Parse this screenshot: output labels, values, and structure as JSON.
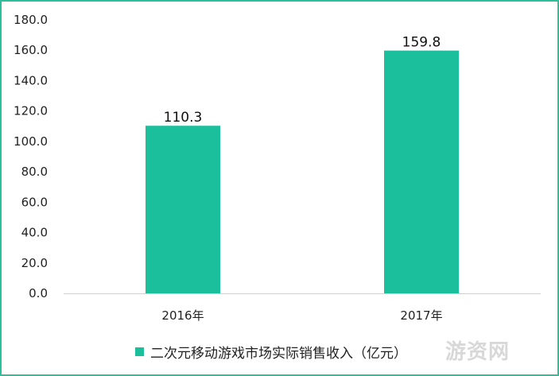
{
  "chart_data": {
    "type": "bar",
    "categories": [
      "2016年",
      "2017年"
    ],
    "series": [
      {
        "name": "二次元移动游戏市场实际销售收入（亿元）",
        "values": [
          110.3,
          159.8
        ]
      }
    ],
    "data_labels": [
      "110.3",
      "159.8"
    ],
    "ylim": [
      0,
      180
    ],
    "yticks": [
      "0.0",
      "20.0",
      "40.0",
      "60.0",
      "80.0",
      "100.0",
      "120.0",
      "140.0",
      "160.0",
      "180.0"
    ],
    "grid": false,
    "legend_position": "bottom",
    "bar_color": "#1bbf9c",
    "frame_color": "#2bbf9a"
  },
  "watermark": "游资网"
}
